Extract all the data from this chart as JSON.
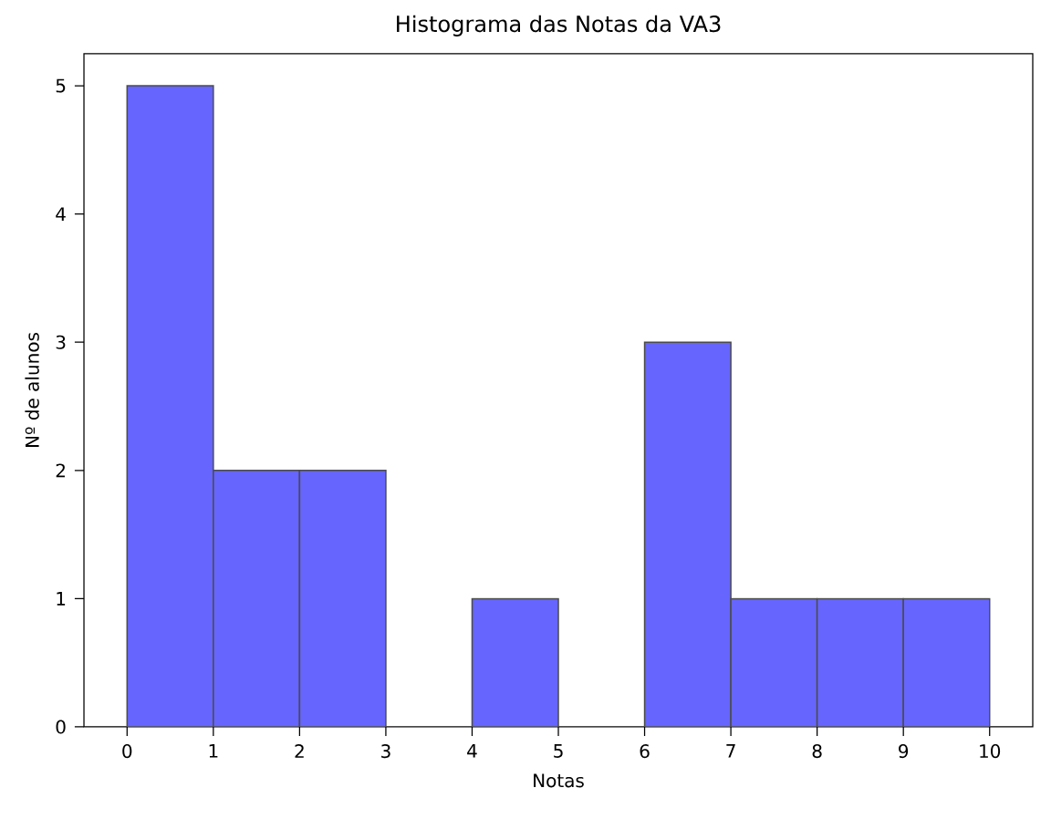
{
  "chart_data": {
    "type": "histogram",
    "title": "Histograma das Notas da VA3",
    "xlabel": "Notas",
    "ylabel": "Nº de alunos",
    "bins": [
      0,
      1,
      2,
      3,
      4,
      5,
      6,
      7,
      8,
      9,
      10
    ],
    "values": [
      5,
      2,
      2,
      0,
      1,
      0,
      3,
      1,
      1,
      1
    ],
    "color": "#6666ff",
    "xlim": [
      -0.5,
      10.5
    ],
    "ylim": [
      0,
      5.25
    ],
    "xticks": [
      0,
      1,
      2,
      3,
      4,
      5,
      6,
      7,
      8,
      9,
      10
    ],
    "yticks": [
      0,
      1,
      2,
      3,
      4,
      5
    ],
    "grid": false
  }
}
